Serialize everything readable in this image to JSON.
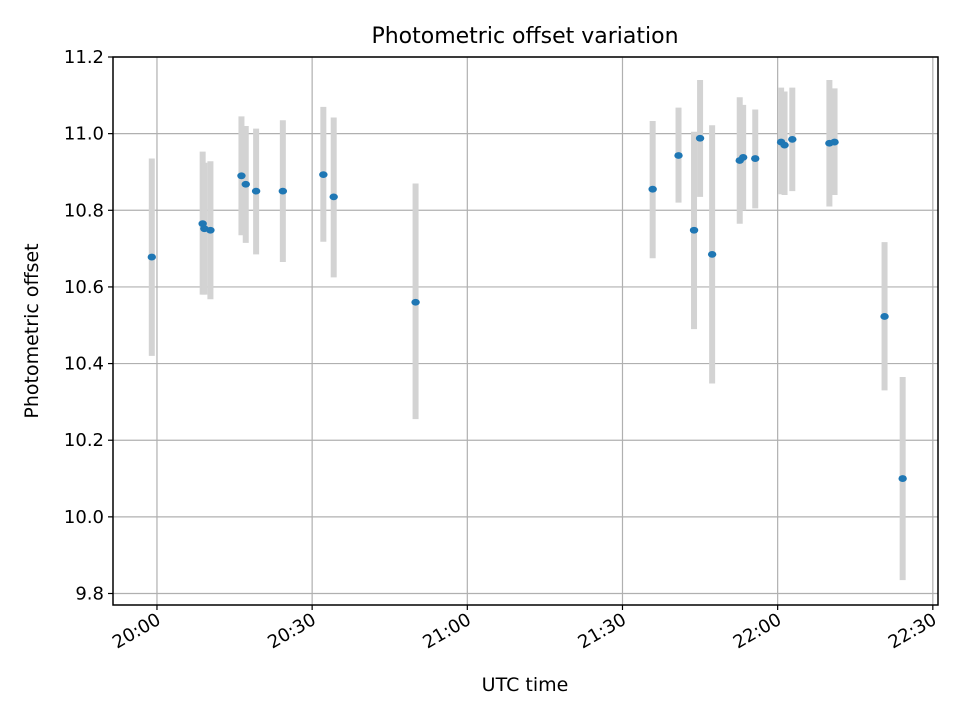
{
  "chart_data": {
    "type": "scatter",
    "title": "Photometric offset variation",
    "xlabel": "UTC time",
    "ylabel": "Photometric offset",
    "x_unit": "time (HH:MM UTC)",
    "xlim": [
      "19:51:30",
      "22:31:00"
    ],
    "ylim": [
      9.77,
      11.2
    ],
    "x_ticks": [
      "20:00",
      "20:30",
      "21:00",
      "21:30",
      "22:00",
      "22:30"
    ],
    "y_ticks": [
      "9.8",
      "10.0",
      "10.2",
      "10.4",
      "10.6",
      "10.8",
      "11.0",
      "11.2"
    ],
    "grid": true,
    "x_tick_rotation": "30deg",
    "colors": {
      "point": "#1f77b4",
      "errorbar": "#d3d3d3",
      "grid": "#b0b0b0",
      "frame": "#000000"
    },
    "series": [
      {
        "marker": "dot",
        "errorbars": true,
        "points": [
          {
            "x": "19:59:00",
            "y": 10.678,
            "low": 10.42,
            "high": 10.935
          },
          {
            "x": "20:08:50",
            "y": 10.765,
            "low": 10.58,
            "high": 10.953
          },
          {
            "x": "20:09:10",
            "y": 10.752,
            "low": 10.58,
            "high": 10.924
          },
          {
            "x": "20:10:20",
            "y": 10.748,
            "low": 10.568,
            "high": 10.928
          },
          {
            "x": "20:16:20",
            "y": 10.89,
            "low": 10.735,
            "high": 11.045
          },
          {
            "x": "20:17:10",
            "y": 10.868,
            "low": 10.715,
            "high": 11.02
          },
          {
            "x": "20:19:10",
            "y": 10.85,
            "low": 10.685,
            "high": 11.013
          },
          {
            "x": "20:24:20",
            "y": 10.85,
            "low": 10.665,
            "high": 11.035
          },
          {
            "x": "20:32:10",
            "y": 10.893,
            "low": 10.718,
            "high": 11.07
          },
          {
            "x": "20:34:10",
            "y": 10.835,
            "low": 10.625,
            "high": 11.042
          },
          {
            "x": "20:50:00",
            "y": 10.56,
            "low": 10.255,
            "high": 10.87
          },
          {
            "x": "21:35:50",
            "y": 10.855,
            "low": 10.675,
            "high": 11.033
          },
          {
            "x": "21:40:50",
            "y": 10.943,
            "low": 10.82,
            "high": 11.068
          },
          {
            "x": "21:43:50",
            "y": 10.748,
            "low": 10.49,
            "high": 11.005
          },
          {
            "x": "21:45:00",
            "y": 10.988,
            "low": 10.835,
            "high": 11.14
          },
          {
            "x": "21:47:20",
            "y": 10.685,
            "low": 10.348,
            "high": 11.022
          },
          {
            "x": "21:52:40",
            "y": 10.93,
            "low": 10.765,
            "high": 11.095
          },
          {
            "x": "21:53:20",
            "y": 10.938,
            "low": 10.8,
            "high": 11.075
          },
          {
            "x": "21:55:40",
            "y": 10.935,
            "low": 10.805,
            "high": 11.063
          },
          {
            "x": "22:00:40",
            "y": 10.978,
            "low": 10.842,
            "high": 11.12
          },
          {
            "x": "22:01:20",
            "y": 10.97,
            "low": 10.84,
            "high": 11.11
          },
          {
            "x": "22:02:50",
            "y": 10.985,
            "low": 10.85,
            "high": 11.12
          },
          {
            "x": "22:10:00",
            "y": 10.975,
            "low": 10.81,
            "high": 11.14
          },
          {
            "x": "22:11:00",
            "y": 10.978,
            "low": 10.84,
            "high": 11.118
          },
          {
            "x": "22:20:40",
            "y": 10.523,
            "low": 10.33,
            "high": 10.717
          },
          {
            "x": "22:24:10",
            "y": 10.1,
            "low": 9.835,
            "high": 10.365
          }
        ]
      }
    ]
  }
}
